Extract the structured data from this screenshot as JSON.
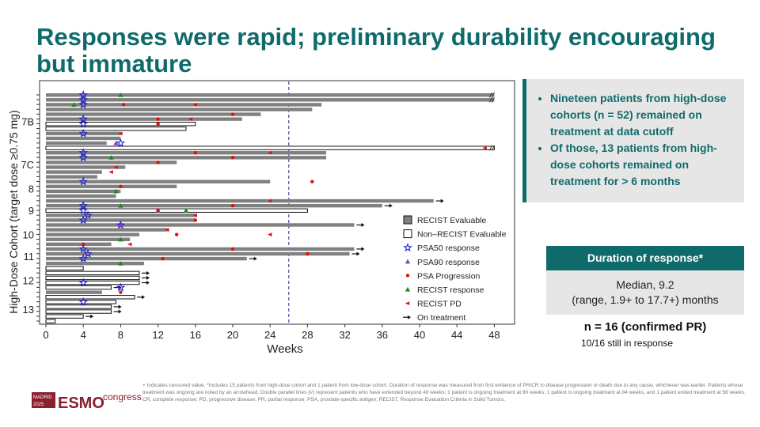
{
  "title": "Responses were rapid; preliminary durability encouraging but immature",
  "callout": [
    "Nineteen patients from high-dose cohorts (n = 52) remained on treatment at data cutoff",
    "Of those, 13 patients from high-dose cohorts remained on treatment for > 6 months"
  ],
  "duration": {
    "header": "Duration of response*",
    "lines": [
      "Median, 9.2",
      "(range, 1.9+ to 17.7+) months"
    ]
  },
  "summary": {
    "n": "n = 16 (confirmed PR)",
    "still": "10/16 still in response"
  },
  "footnote": [
    "+ Indicates censored value. *Includes 15 patients from high-dose cohort and 1 patient from low-dose cohort. Duration of response was measured from first evidence of PR/CR to disease progression or death due to any cause, whichever was earlier. Patients whose treatment was ongoing are noted by an arrowhead. Double parallel lines (//) represent patients who have extended beyond 48 weeks: 1 patient is ongoing treatment at 90 weeks, 1 patient is ongoing treatment at 84 weeks, and 1 patient ended treatment at 58 weeks.",
    "CR, complete response; PD, progressive disease; PR, partial response; PSA, prostate-specific antigen; RECIST, Response Evaluation Criteria in Solid Tumors."
  ],
  "logo": {
    "city": "MADRID",
    "year": "2025",
    "brand": "ESMO",
    "event": "congress"
  },
  "chart_data": {
    "type": "swimmer",
    "x_label": "Weeks",
    "y_label": "High-Dose Cohort (target dose ≥0.75 mg)",
    "xlim": [
      0,
      50
    ],
    "xticks": [
      0,
      4,
      8,
      12,
      16,
      20,
      24,
      28,
      32,
      36,
      40,
      44,
      48
    ],
    "reference_line": 26,
    "bar_styles": [
      {
        "name": "RECIST Evaluable",
        "color": "#808080"
      },
      {
        "name": "Non–RECIST Evaluable",
        "color": "#ffffff"
      }
    ],
    "ongoing_label": "On treatment",
    "markers": [
      {
        "name": "PSA50 response",
        "color": "#2323d6",
        "shape": "star"
      },
      {
        "name": "PSA90 response",
        "color": "#8040c0",
        "shape": "triangle"
      },
      {
        "name": "PSA Progression",
        "color": "#e01010",
        "shape": "circle"
      },
      {
        "name": "RECIST response",
        "color": "#1a8a1a",
        "shape": "triangle"
      },
      {
        "name": "RECIST PD",
        "color": "#e01010",
        "shape": "left"
      }
    ],
    "bars": [
      {
        "cohort": "7B",
        "weeks": 48,
        "evaluable": true,
        "ongoing": false,
        "events": [
          4,
          null,
          null,
          8,
          null
        ]
      },
      {
        "cohort": "7B",
        "weeks": 48,
        "evaluable": true,
        "ongoing": false,
        "events": [
          4,
          null,
          null,
          null,
          null
        ]
      },
      {
        "cohort": "7B",
        "weeks": 29.5,
        "evaluable": true,
        "ongoing": false,
        "events": [
          4,
          null,
          8.3,
          3,
          16
        ]
      },
      {
        "cohort": "7B",
        "weeks": 28.5,
        "evaluable": true,
        "ongoing": false,
        "events": [
          null,
          null,
          null,
          null,
          null
        ]
      },
      {
        "cohort": "7B",
        "weeks": 23,
        "evaluable": true,
        "ongoing": false,
        "events": [
          null,
          null,
          20,
          null,
          null
        ]
      },
      {
        "cohort": "7B",
        "weeks": 21,
        "evaluable": true,
        "ongoing": false,
        "events": [
          4,
          null,
          12,
          null,
          15.5
        ]
      },
      {
        "cohort": "7B",
        "weeks": 16,
        "evaluable": false,
        "ongoing": false,
        "events": [
          4,
          null,
          12,
          null,
          null
        ]
      },
      {
        "cohort": "7B",
        "weeks": 15,
        "evaluable": false,
        "ongoing": false,
        "events": [
          null,
          null,
          null,
          null,
          null
        ]
      },
      {
        "cohort": "7B",
        "weeks": 8,
        "evaluable": true,
        "ongoing": false,
        "events": [
          4,
          null,
          null,
          null,
          8
        ]
      },
      {
        "cohort": "7B",
        "weeks": 8,
        "evaluable": true,
        "ongoing": false,
        "events": [
          null,
          null,
          null,
          null,
          null
        ]
      },
      {
        "cohort": "7B",
        "weeks": 6.5,
        "evaluable": true,
        "ongoing": false,
        "events": [
          8,
          7.5,
          null,
          null,
          null
        ]
      },
      {
        "cohort": "7B",
        "weeks": 48,
        "evaluable": false,
        "ongoing": false,
        "events": [
          null,
          null,
          null,
          null,
          47
        ]
      },
      {
        "cohort": "7C",
        "weeks": 30,
        "evaluable": true,
        "ongoing": false,
        "events": [
          4,
          null,
          16,
          null,
          24
        ]
      },
      {
        "cohort": "7C",
        "weeks": 30,
        "evaluable": true,
        "ongoing": false,
        "events": [
          4,
          null,
          20,
          7,
          null
        ]
      },
      {
        "cohort": "7C",
        "weeks": 14,
        "evaluable": true,
        "ongoing": false,
        "events": [
          null,
          null,
          12,
          null,
          null
        ]
      },
      {
        "cohort": "7C",
        "weeks": 8.5,
        "evaluable": true,
        "ongoing": false,
        "events": [
          null,
          null,
          null,
          null,
          7.5
        ]
      },
      {
        "cohort": "7C",
        "weeks": 6,
        "evaluable": true,
        "ongoing": false,
        "events": [
          null,
          null,
          null,
          null,
          7
        ]
      },
      {
        "cohort": "7C",
        "weeks": 5.5,
        "evaluable": true,
        "ongoing": false,
        "events": [
          null,
          null,
          null,
          null,
          null
        ]
      },
      {
        "cohort": "8",
        "weeks": 24,
        "evaluable": true,
        "ongoing": false,
        "events": [
          4,
          null,
          28.5,
          null,
          null
        ]
      },
      {
        "cohort": "8",
        "weeks": 14,
        "evaluable": true,
        "ongoing": false,
        "events": [
          null,
          null,
          8,
          null,
          null
        ]
      },
      {
        "cohort": "8",
        "weeks": 8,
        "evaluable": true,
        "ongoing": false,
        "events": [
          null,
          null,
          null,
          7.5,
          null
        ]
      },
      {
        "cohort": "8",
        "weeks": 7.5,
        "evaluable": true,
        "ongoing": false,
        "events": [
          null,
          null,
          null,
          null,
          null
        ]
      },
      {
        "cohort": "9",
        "weeks": 41.5,
        "evaluable": true,
        "ongoing": true,
        "events": [
          null,
          null,
          null,
          null,
          24
        ]
      },
      {
        "cohort": "9",
        "weeks": 36,
        "evaluable": true,
        "ongoing": true,
        "events": [
          4,
          null,
          20,
          8,
          null
        ]
      },
      {
        "cohort": "9",
        "weeks": 28,
        "evaluable": false,
        "ongoing": false,
        "events": [
          4,
          12,
          12,
          15,
          null
        ]
      },
      {
        "cohort": "9",
        "weeks": 16,
        "evaluable": true,
        "ongoing": false,
        "events": [
          4.5,
          null,
          null,
          null,
          16
        ]
      },
      {
        "cohort": "9",
        "weeks": 16,
        "evaluable": true,
        "ongoing": false,
        "events": [
          4,
          null,
          16,
          null,
          null
        ]
      },
      {
        "cohort": "10",
        "weeks": 33,
        "evaluable": true,
        "ongoing": true,
        "events": [
          8,
          8,
          null,
          null,
          null
        ]
      },
      {
        "cohort": "10",
        "weeks": 13,
        "evaluable": true,
        "ongoing": false,
        "events": [
          null,
          null,
          null,
          null,
          13
        ]
      },
      {
        "cohort": "10",
        "weeks": 10,
        "evaluable": true,
        "ongoing": false,
        "events": [
          null,
          null,
          14,
          null,
          24
        ]
      },
      {
        "cohort": "10",
        "weeks": 9,
        "evaluable": true,
        "ongoing": false,
        "events": [
          null,
          null,
          null,
          8,
          null
        ]
      },
      {
        "cohort": "10",
        "weeks": 7,
        "evaluable": true,
        "ongoing": false,
        "events": [
          null,
          null,
          4,
          null,
          9
        ]
      },
      {
        "cohort": "11",
        "weeks": 33,
        "evaluable": true,
        "ongoing": true,
        "events": [
          4,
          null,
          20,
          null,
          null
        ]
      },
      {
        "cohort": "11",
        "weeks": 32.5,
        "evaluable": true,
        "ongoing": true,
        "events": [
          4.5,
          null,
          28,
          null,
          null
        ]
      },
      {
        "cohort": "11",
        "weeks": 21.5,
        "evaluable": true,
        "ongoing": true,
        "events": [
          4,
          null,
          12.5,
          null,
          null
        ]
      },
      {
        "cohort": "11",
        "weeks": 10.5,
        "evaluable": true,
        "ongoing": false,
        "events": [
          null,
          null,
          null,
          8,
          null
        ]
      },
      {
        "cohort": "12",
        "weeks": 4,
        "evaluable": false,
        "ongoing": false,
        "events": [
          null,
          null,
          null,
          null,
          null
        ]
      },
      {
        "cohort": "12",
        "weeks": 10,
        "evaluable": false,
        "ongoing": true,
        "events": [
          null,
          null,
          null,
          null,
          null
        ]
      },
      {
        "cohort": "12",
        "weeks": 10,
        "evaluable": false,
        "ongoing": true,
        "events": [
          null,
          null,
          null,
          null,
          null
        ]
      },
      {
        "cohort": "12",
        "weeks": 10,
        "evaluable": false,
        "ongoing": true,
        "events": [
          4,
          null,
          null,
          null,
          null
        ]
      },
      {
        "cohort": "12",
        "weeks": 7,
        "evaluable": false,
        "ongoing": true,
        "events": [
          8,
          null,
          null,
          null,
          null
        ]
      },
      {
        "cohort": "12",
        "weeks": 6,
        "evaluable": true,
        "ongoing": false,
        "events": [
          null,
          null,
          8,
          null,
          null
        ]
      },
      {
        "cohort": "13",
        "weeks": 9.5,
        "evaluable": false,
        "ongoing": true,
        "events": [
          null,
          null,
          null,
          null,
          null
        ]
      },
      {
        "cohort": "13",
        "weeks": 7.5,
        "evaluable": false,
        "ongoing": false,
        "events": [
          4,
          null,
          null,
          null,
          null
        ]
      },
      {
        "cohort": "13",
        "weeks": 7,
        "evaluable": false,
        "ongoing": true,
        "events": [
          null,
          null,
          null,
          null,
          null
        ]
      },
      {
        "cohort": "13",
        "weeks": 7,
        "evaluable": false,
        "ongoing": true,
        "events": [
          null,
          null,
          null,
          null,
          null
        ]
      },
      {
        "cohort": "13",
        "weeks": 4,
        "evaluable": false,
        "ongoing": true,
        "events": [
          null,
          null,
          null,
          null,
          null
        ]
      },
      {
        "cohort": "13",
        "weeks": 1,
        "evaluable": false,
        "ongoing": false,
        "events": [
          null,
          null,
          null,
          null,
          null
        ]
      }
    ]
  }
}
